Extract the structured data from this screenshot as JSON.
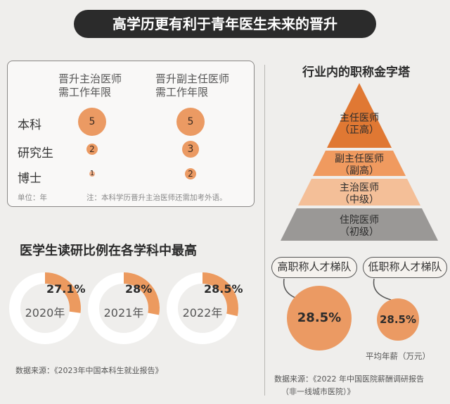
{
  "title": "高学历更有利于青年医生未来的晋升",
  "table": {
    "col1": [
      "晋升主治医师",
      "需工作年限"
    ],
    "col2": [
      "晋升副主任医师",
      "需工作年限"
    ],
    "rows": [
      {
        "label": "本科",
        "v1": "5",
        "v2": "5"
      },
      {
        "label": "研究生",
        "v1": "2",
        "v2": "3"
      },
      {
        "label": "博士",
        "v1": "1",
        "v2": "2"
      }
    ],
    "unit": "单位：年",
    "note": "注：本科学历晋升主治医师还需加考外语。"
  },
  "ratio_section": {
    "title": "医学生读研比例在各学科中最高",
    "source": "数据来源：《2023年中国本科生就业报告》"
  },
  "pyramid": {
    "title": "行业内的职称金字塔",
    "levels": [
      {
        "name": "主任医师",
        "sub": "（正高）",
        "color": "#e07833"
      },
      {
        "name": "副主任医师",
        "sub": "（副高）",
        "color": "#f09a5f"
      },
      {
        "name": "主治医师",
        "sub": "（中级）",
        "color": "#f4bf98"
      },
      {
        "name": "住院医师",
        "sub": "（初级）",
        "color": "#9a9896"
      }
    ]
  },
  "salary": {
    "high_label": "高职称人才梯队",
    "low_label": "低职称人才梯队",
    "high_value": "28.5%",
    "low_value": "28.5%",
    "note": "平均年薪（万元）",
    "source_line1": "数据来源：《2022 年中国医院薪酬调研报告",
    "source_line2": "（非一线城市医院）》"
  },
  "chart_data": {
    "type": "pie",
    "title": "医学生读研比例在各学科中最高",
    "categories": [
      "2020年",
      "2021年",
      "2022年"
    ],
    "values": [
      27.1,
      28,
      28.5
    ],
    "value_labels": [
      "27.1%",
      "28%",
      "28.5%"
    ],
    "colors": {
      "filled": "#ec9a5f",
      "rest": "#ffffff"
    }
  }
}
